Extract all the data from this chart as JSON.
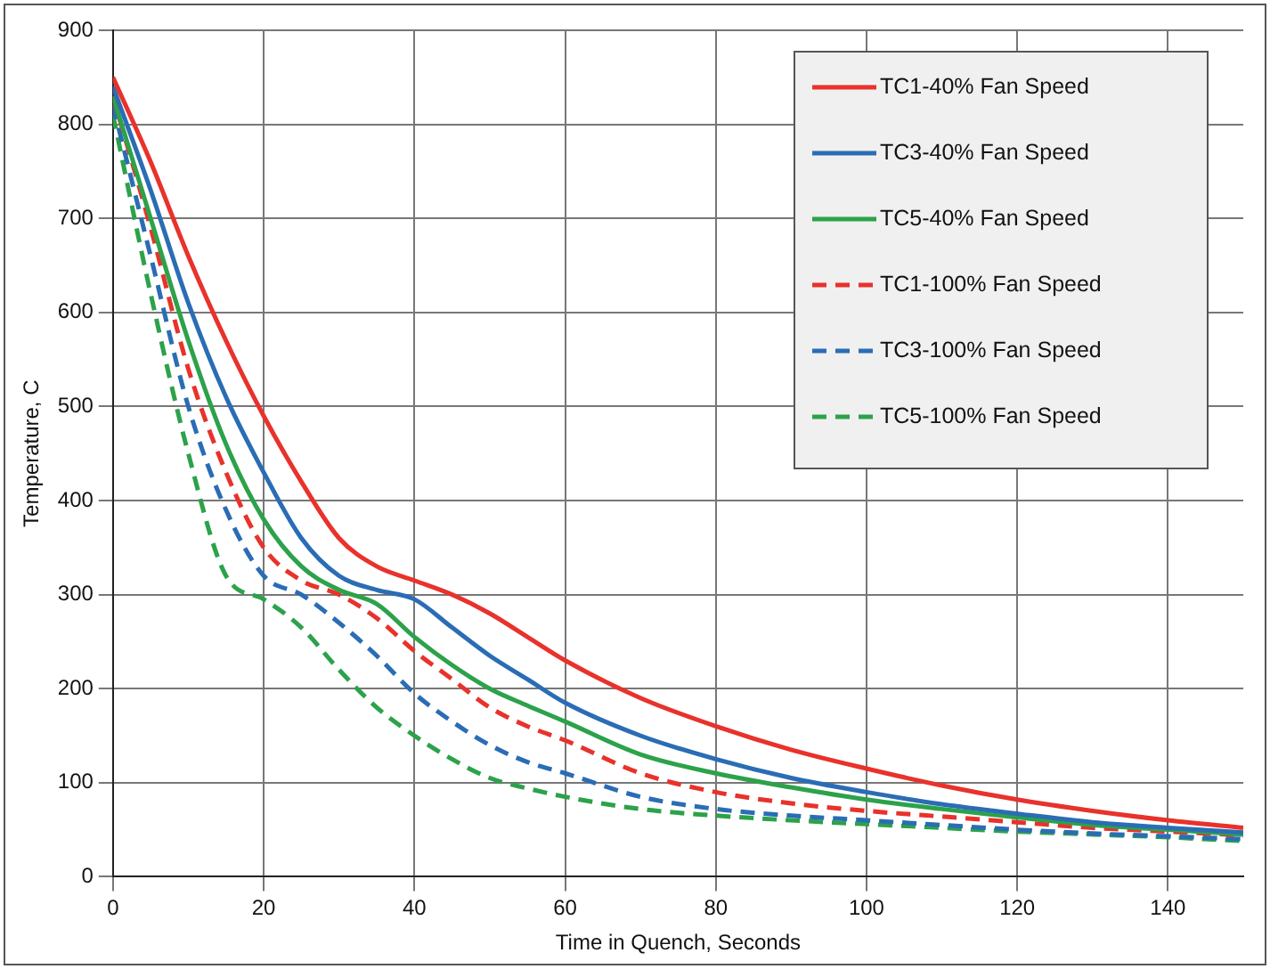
{
  "chart_data": {
    "type": "line",
    "xlabel": "Time in Quench, Seconds",
    "ylabel": "Temperature, C",
    "xlim": [
      0,
      150
    ],
    "xticks": [
      0,
      20,
      40,
      60,
      80,
      100,
      120,
      140
    ],
    "ylim": [
      0,
      900
    ],
    "yticks": [
      0,
      100,
      200,
      300,
      400,
      500,
      600,
      700,
      800,
      900
    ],
    "grid": true,
    "legend": "top right",
    "marker": "none",
    "x": [
      0,
      5,
      10,
      15,
      20,
      25,
      30,
      35,
      40,
      45,
      50,
      55,
      60,
      70,
      80,
      90,
      100,
      110,
      120,
      130,
      140,
      150
    ],
    "series": [
      {
        "name": "TC1-40% Fan Speed",
        "color": "#e8322b",
        "line_style": "solid",
        "values": [
          850,
          760,
          660,
          570,
          490,
          420,
          360,
          330,
          315,
          300,
          280,
          255,
          230,
          190,
          160,
          135,
          115,
          97,
          82,
          70,
          60,
          52
        ]
      },
      {
        "name": "TC3-40% Fan Speed",
        "color": "#2a6db5",
        "line_style": "solid",
        "values": [
          840,
          730,
          610,
          510,
          430,
          360,
          320,
          305,
          295,
          265,
          235,
          210,
          185,
          150,
          125,
          105,
          90,
          77,
          67,
          58,
          52,
          47
        ]
      },
      {
        "name": "TC5-40% Fan Speed",
        "color": "#2ca24a",
        "line_style": "solid",
        "values": [
          830,
          700,
          570,
          460,
          380,
          330,
          305,
          290,
          255,
          225,
          200,
          182,
          165,
          130,
          110,
          95,
          82,
          72,
          63,
          55,
          50,
          45
        ]
      },
      {
        "name": "TC1-100% Fan Speed",
        "color": "#e8322b",
        "line_style": "dashed",
        "values": [
          830,
          690,
          540,
          430,
          350,
          315,
          300,
          275,
          240,
          210,
          180,
          160,
          145,
          110,
          90,
          78,
          70,
          64,
          58,
          52,
          48,
          44
        ]
      },
      {
        "name": "TC3-100% Fan Speed",
        "color": "#2a6db5",
        "line_style": "dashed",
        "values": [
          820,
          660,
          500,
          390,
          320,
          300,
          270,
          235,
          195,
          165,
          140,
          122,
          110,
          85,
          72,
          65,
          60,
          55,
          50,
          46,
          43,
          40
        ]
      },
      {
        "name": "TC5-100% Fan Speed",
        "color": "#2ca24a",
        "line_style": "dashed",
        "values": [
          810,
          620,
          450,
          320,
          295,
          265,
          220,
          180,
          150,
          125,
          105,
          94,
          85,
          72,
          65,
          60,
          56,
          52,
          48,
          45,
          42,
          38
        ]
      }
    ]
  }
}
